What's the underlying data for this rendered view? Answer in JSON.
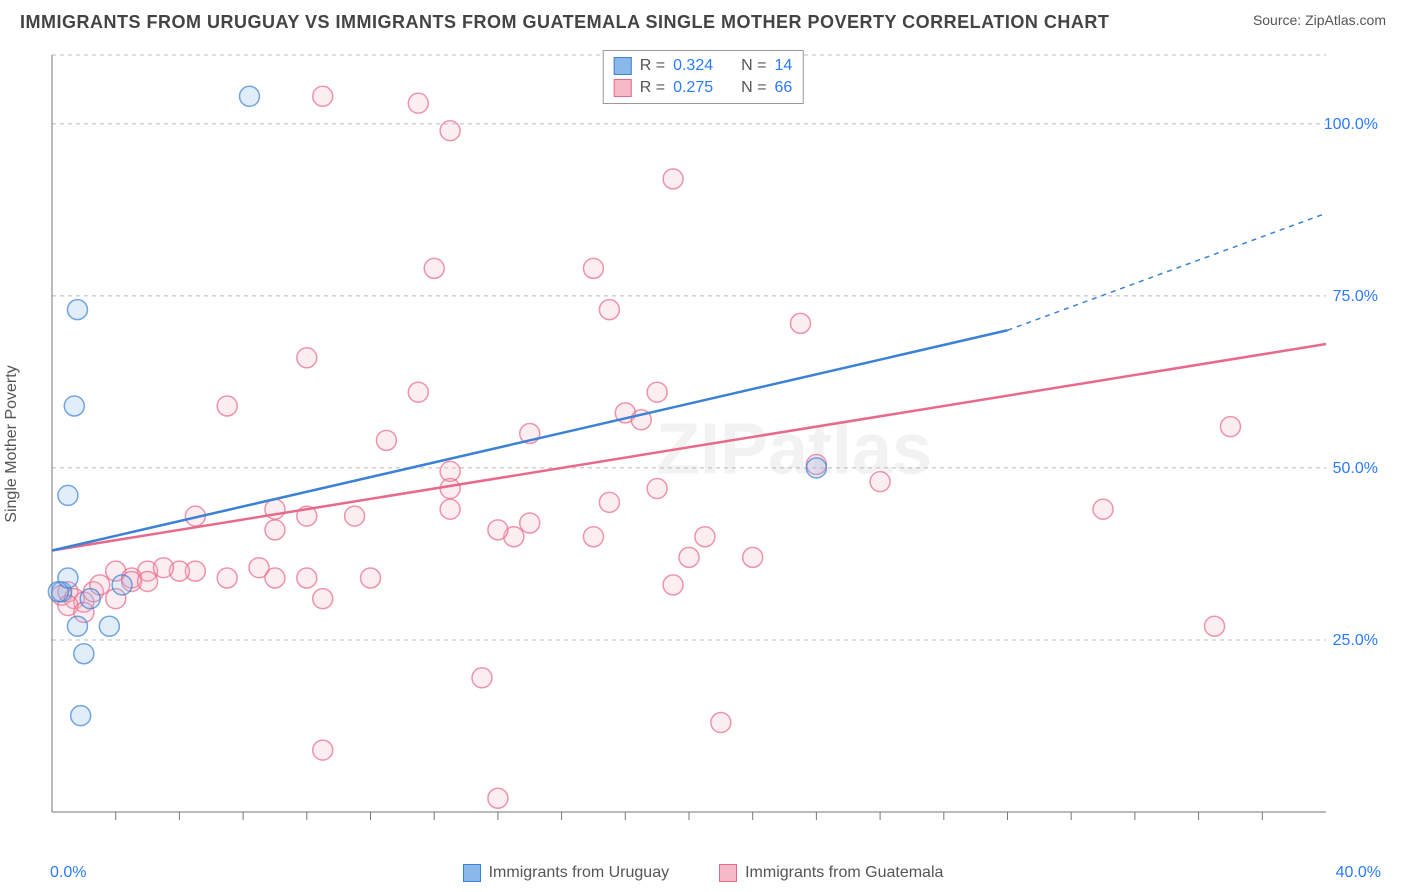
{
  "header": {
    "title": "IMMIGRANTS FROM URUGUAY VS IMMIGRANTS FROM GUATEMALA SINGLE MOTHER POVERTY CORRELATION CHART",
    "source_label": "Source: ",
    "source_name": "ZipAtlas.com"
  },
  "ylabel": "Single Mother Poverty",
  "watermark": "ZIPatlas",
  "chart": {
    "type": "scatter",
    "background_color": "#ffffff",
    "grid_color": "#bbbbbb",
    "grid_dash": "4 4",
    "xlim": [
      0,
      40
    ],
    "ylim": [
      0,
      110
    ],
    "y_ticks": [
      25,
      50,
      75,
      100
    ],
    "y_tick_labels": [
      "25.0%",
      "50.0%",
      "75.0%",
      "100.0%"
    ],
    "x_tick_min_label": "0.0%",
    "x_tick_max_label": "40.0%",
    "x_minor_ticks": [
      2,
      4,
      6,
      8,
      10,
      12,
      14,
      16,
      18,
      20,
      22,
      24,
      26,
      28,
      30,
      32,
      34,
      36,
      38
    ],
    "tick_label_color": "#2b7bff",
    "tick_fontsize": 16,
    "marker_radius": 10,
    "marker_opacity": 0.25,
    "marker_stroke_opacity": 0.7,
    "series": [
      {
        "name": "Immigrants from Uruguay",
        "color_fill": "#8bb8ea",
        "color_stroke": "#3b82d6",
        "R": "0.324",
        "N": "14",
        "points": [
          [
            6.2,
            104
          ],
          [
            0.8,
            73
          ],
          [
            0.7,
            59
          ],
          [
            0.5,
            46
          ],
          [
            0.3,
            32
          ],
          [
            0.2,
            32
          ],
          [
            1.2,
            31
          ],
          [
            0.8,
            27
          ],
          [
            1.8,
            27
          ],
          [
            1.0,
            23
          ],
          [
            0.9,
            14
          ],
          [
            2.2,
            33
          ],
          [
            0.5,
            34
          ],
          [
            24.0,
            50
          ]
        ],
        "trend": {
          "x1": 0,
          "y1": 38,
          "x2": 30,
          "y2": 70,
          "dash_from_x": 30,
          "x3": 40,
          "y3": 87,
          "width": 2.5
        }
      },
      {
        "name": "Immigrants from Guatemala",
        "color_fill": "#f5b9c7",
        "color_stroke": "#e76a8a",
        "R": "0.275",
        "N": "66",
        "points": [
          [
            8.5,
            104
          ],
          [
            11.5,
            103
          ],
          [
            12.5,
            99
          ],
          [
            19.5,
            92
          ],
          [
            12.0,
            79
          ],
          [
            17.0,
            79
          ],
          [
            17.5,
            73
          ],
          [
            23.5,
            71
          ],
          [
            8.0,
            66
          ],
          [
            11.5,
            61
          ],
          [
            5.5,
            59
          ],
          [
            19.0,
            61
          ],
          [
            18.0,
            58
          ],
          [
            18.5,
            57
          ],
          [
            15.0,
            55
          ],
          [
            10.5,
            54
          ],
          [
            37.0,
            56
          ],
          [
            12.5,
            49.5
          ],
          [
            24.0,
            50.5
          ],
          [
            26.0,
            48
          ],
          [
            12.5,
            47
          ],
          [
            19.0,
            47
          ],
          [
            17.5,
            45
          ],
          [
            12.5,
            44
          ],
          [
            7.0,
            44
          ],
          [
            4.5,
            43
          ],
          [
            9.5,
            43
          ],
          [
            8.0,
            43
          ],
          [
            33.0,
            44
          ],
          [
            14.5,
            40
          ],
          [
            17.0,
            40
          ],
          [
            20.5,
            40
          ],
          [
            14.0,
            41
          ],
          [
            7.0,
            41
          ],
          [
            15.0,
            42
          ],
          [
            20.0,
            37
          ],
          [
            22.0,
            37
          ],
          [
            6.5,
            35.5
          ],
          [
            4.5,
            35
          ],
          [
            4.0,
            35
          ],
          [
            3.0,
            35
          ],
          [
            2.0,
            35
          ],
          [
            2.5,
            34
          ],
          [
            3.5,
            35.5
          ],
          [
            5.5,
            34
          ],
          [
            7.0,
            34
          ],
          [
            8.0,
            34
          ],
          [
            10.0,
            34
          ],
          [
            19.5,
            33
          ],
          [
            8.5,
            31
          ],
          [
            0.3,
            31.5
          ],
          [
            0.5,
            32
          ],
          [
            0.7,
            31
          ],
          [
            1.0,
            30.5
          ],
          [
            1.3,
            32
          ],
          [
            1.5,
            33
          ],
          [
            2.5,
            33.5
          ],
          [
            3.0,
            33.5
          ],
          [
            0.5,
            30
          ],
          [
            36.5,
            27
          ],
          [
            13.5,
            19.5
          ],
          [
            21.0,
            13
          ],
          [
            14.0,
            2
          ],
          [
            8.5,
            9
          ],
          [
            1.0,
            29
          ],
          [
            2.0,
            31
          ]
        ],
        "trend": {
          "x1": 0,
          "y1": 38,
          "x2": 40,
          "y2": 68,
          "width": 2.5
        }
      }
    ]
  },
  "legend_top": {
    "r_label": "R =",
    "n_label": "N ="
  }
}
